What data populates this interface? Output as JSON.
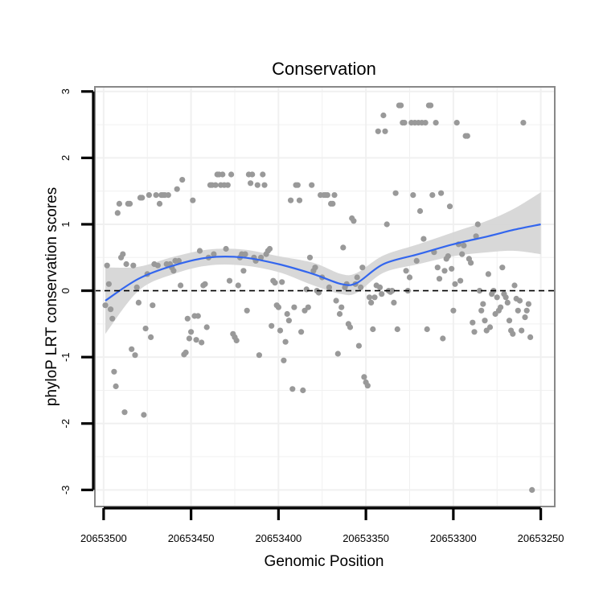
{
  "chart_data": {
    "type": "scatter",
    "title": "Conservation",
    "xlabel": "Genomic Position",
    "ylabel": "phyloP LRT conservation scores",
    "xlim": [
      20653505,
      20653242
    ],
    "x_reversed": true,
    "ylim": [
      -3.25,
      3.07
    ],
    "x_ticks": [
      20653500,
      20653450,
      20653400,
      20653350,
      20653300,
      20653250
    ],
    "x_tick_labels": [
      "20653500",
      "20653450",
      "20653400",
      "20653350",
      "20653300",
      "20653250"
    ],
    "y_ticks": [
      -3,
      -2,
      -1,
      0,
      1,
      2,
      3
    ],
    "y_tick_labels": [
      "-3",
      "-2",
      "-1",
      "0",
      "1",
      "2",
      "3"
    ],
    "grid": true,
    "reference_line": {
      "y": 0,
      "style": "dashed",
      "color": "#000000"
    },
    "colors": {
      "points": "#999999",
      "smooth": "#3366ee",
      "ribbon": "#d4d4d4",
      "panel_border": "#888888",
      "grid": "#f0f0f0",
      "axis_line": "#000000"
    },
    "series": [
      {
        "name": "phyloP scores",
        "kind": "points",
        "points": [
          [
            20653499,
            -0.22
          ],
          [
            20653498,
            0.38
          ],
          [
            20653497,
            0.1
          ],
          [
            20653496,
            -0.28
          ],
          [
            20653495,
            -0.42
          ],
          [
            20653494,
            -1.22
          ],
          [
            20653493,
            -1.44
          ],
          [
            20653492,
            1.17
          ],
          [
            20653491,
            1.31
          ],
          [
            20653490,
            0.5
          ],
          [
            20653489,
            0.55
          ],
          [
            20653488,
            -1.83
          ],
          [
            20653487,
            0.4
          ],
          [
            20653486,
            1.31
          ],
          [
            20653485,
            1.31
          ],
          [
            20653484,
            -0.88
          ],
          [
            20653483,
            0.38
          ],
          [
            20653482,
            -0.97
          ],
          [
            20653481,
            0.05
          ],
          [
            20653480,
            -0.18
          ],
          [
            20653479,
            1.4
          ],
          [
            20653478,
            1.4
          ],
          [
            20653477,
            -1.87
          ],
          [
            20653476,
            -0.57
          ],
          [
            20653475,
            0.25
          ],
          [
            20653474,
            1.44
          ],
          [
            20653473,
            -0.7
          ],
          [
            20653472,
            -0.22
          ],
          [
            20653471,
            0.4
          ],
          [
            20653470,
            1.44
          ],
          [
            20653469,
            0.38
          ],
          [
            20653468,
            1.31
          ],
          [
            20653467,
            1.44
          ],
          [
            20653466,
            1.44
          ],
          [
            20653465,
            1.44
          ],
          [
            20653464,
            0.4
          ],
          [
            20653463,
            1.44
          ],
          [
            20653462,
            0.4
          ],
          [
            20653461,
            0.35
          ],
          [
            20653460,
            0.3
          ],
          [
            20653459,
            0.45
          ],
          [
            20653458,
            1.53
          ],
          [
            20653457,
            0.45
          ],
          [
            20653456,
            0.08
          ],
          [
            20653455,
            1.67
          ],
          [
            20653454,
            -0.96
          ],
          [
            20653453,
            -0.93
          ],
          [
            20653452,
            -0.42
          ],
          [
            20653451,
            -0.72
          ],
          [
            20653450,
            -0.62
          ],
          [
            20653449,
            1.36
          ],
          [
            20653448,
            -0.38
          ],
          [
            20653447,
            -0.74
          ],
          [
            20653446,
            -0.38
          ],
          [
            20653445,
            0.6
          ],
          [
            20653444,
            -0.78
          ],
          [
            20653443,
            0.08
          ],
          [
            20653442,
            0.1
          ],
          [
            20653441,
            -0.55
          ],
          [
            20653440,
            0.5
          ],
          [
            20653439,
            1.59
          ],
          [
            20653438,
            1.59
          ],
          [
            20653437,
            0.55
          ],
          [
            20653436,
            1.59
          ],
          [
            20653435,
            1.75
          ],
          [
            20653434,
            1.75
          ],
          [
            20653433,
            1.59
          ],
          [
            20653432,
            1.75
          ],
          [
            20653431,
            1.59
          ],
          [
            20653430,
            0.63
          ],
          [
            20653429,
            1.59
          ],
          [
            20653428,
            0.15
          ],
          [
            20653427,
            1.75
          ],
          [
            20653426,
            -0.65
          ],
          [
            20653425,
            -0.7
          ],
          [
            20653424,
            -0.75
          ],
          [
            20653423,
            0.08
          ],
          [
            20653422,
            0.5
          ],
          [
            20653421,
            0.55
          ],
          [
            20653420,
            0.3
          ],
          [
            20653419,
            0.55
          ],
          [
            20653418,
            -0.3
          ],
          [
            20653417,
            1.75
          ],
          [
            20653416,
            1.62
          ],
          [
            20653415,
            1.75
          ],
          [
            20653414,
            0.5
          ],
          [
            20653413,
            0.45
          ],
          [
            20653412,
            1.59
          ],
          [
            20653411,
            -0.97
          ],
          [
            20653410,
            0.5
          ],
          [
            20653409,
            1.75
          ],
          [
            20653408,
            1.59
          ],
          [
            20653407,
            0.55
          ],
          [
            20653406,
            0.6
          ],
          [
            20653405,
            0.63
          ],
          [
            20653404,
            -0.53
          ],
          [
            20653403,
            0.15
          ],
          [
            20653402,
            0.12
          ],
          [
            20653401,
            -0.22
          ],
          [
            20653400,
            -0.25
          ],
          [
            20653399,
            -0.6
          ],
          [
            20653398,
            0.13
          ],
          [
            20653397,
            -1.05
          ],
          [
            20653396,
            -0.77
          ],
          [
            20653395,
            -0.35
          ],
          [
            20653394,
            -0.45
          ],
          [
            20653393,
            1.36
          ],
          [
            20653392,
            -1.48
          ],
          [
            20653391,
            -0.25
          ],
          [
            20653390,
            1.59
          ],
          [
            20653389,
            1.59
          ],
          [
            20653388,
            1.36
          ],
          [
            20653387,
            -0.62
          ],
          [
            20653386,
            -1.5
          ],
          [
            20653385,
            -0.3
          ],
          [
            20653384,
            0.02
          ],
          [
            20653383,
            -0.25
          ],
          [
            20653382,
            0.5
          ],
          [
            20653381,
            1.59
          ],
          [
            20653380,
            0.3
          ],
          [
            20653379,
            0.35
          ],
          [
            20653378,
            0.0
          ],
          [
            20653377,
            -0.03
          ],
          [
            20653376,
            1.44
          ],
          [
            20653375,
            0.2
          ],
          [
            20653374,
            1.44
          ],
          [
            20653373,
            1.44
          ],
          [
            20653372,
            1.44
          ],
          [
            20653371,
            0.05
          ],
          [
            20653370,
            1.31
          ],
          [
            20653369,
            1.31
          ],
          [
            20653368,
            1.44
          ],
          [
            20653367,
            -0.15
          ],
          [
            20653366,
            -0.95
          ],
          [
            20653365,
            -0.35
          ],
          [
            20653364,
            -0.25
          ],
          [
            20653363,
            0.65
          ],
          [
            20653362,
            0.05
          ],
          [
            20653361,
            0.1
          ],
          [
            20653360,
            -0.5
          ],
          [
            20653359,
            -0.55
          ],
          [
            20653358,
            1.09
          ],
          [
            20653357,
            1.05
          ],
          [
            20653356,
            0.1
          ],
          [
            20653355,
            0.2
          ],
          [
            20653354,
            -0.83
          ],
          [
            20653353,
            0.05
          ],
          [
            20653352,
            0.35
          ],
          [
            20653351,
            -1.3
          ],
          [
            20653350,
            -1.38
          ],
          [
            20653349,
            -1.43
          ],
          [
            20653348,
            -0.1
          ],
          [
            20653347,
            -0.18
          ],
          [
            20653346,
            -0.58
          ],
          [
            20653345,
            -0.1
          ],
          [
            20653344,
            0.08
          ],
          [
            20653343,
            2.4
          ],
          [
            20653342,
            0.05
          ],
          [
            20653341,
            -0.05
          ],
          [
            20653340,
            2.64
          ],
          [
            20653339,
            2.4
          ],
          [
            20653338,
            1.0
          ],
          [
            20653337,
            0.0
          ],
          [
            20653336,
            -0.02
          ],
          [
            20653335,
            0.0
          ],
          [
            20653334,
            -0.18
          ],
          [
            20653333,
            1.47
          ],
          [
            20653332,
            -0.58
          ],
          [
            20653331,
            2.79
          ],
          [
            20653330,
            2.79
          ],
          [
            20653329,
            2.53
          ],
          [
            20653328,
            2.53
          ],
          [
            20653327,
            0.3
          ],
          [
            20653326,
            0.0
          ],
          [
            20653325,
            0.2
          ],
          [
            20653324,
            2.53
          ],
          [
            20653323,
            1.44
          ],
          [
            20653322,
            2.53
          ],
          [
            20653321,
            0.45
          ],
          [
            20653320,
            2.53
          ],
          [
            20653319,
            1.2
          ],
          [
            20653318,
            2.53
          ],
          [
            20653317,
            0.78
          ],
          [
            20653316,
            2.53
          ],
          [
            20653315,
            -0.58
          ],
          [
            20653314,
            2.79
          ],
          [
            20653313,
            2.79
          ],
          [
            20653312,
            1.44
          ],
          [
            20653311,
            0.58
          ],
          [
            20653310,
            2.53
          ],
          [
            20653309,
            0.35
          ],
          [
            20653308,
            0.18
          ],
          [
            20653307,
            1.47
          ],
          [
            20653306,
            -0.72
          ],
          [
            20653305,
            0.3
          ],
          [
            20653304,
            0.48
          ],
          [
            20653303,
            0.52
          ],
          [
            20653302,
            1.27
          ],
          [
            20653301,
            0.33
          ],
          [
            20653300,
            -0.3
          ],
          [
            20653299,
            0.1
          ],
          [
            20653298,
            2.53
          ],
          [
            20653297,
            0.7
          ],
          [
            20653296,
            0.15
          ],
          [
            20653295,
            0.55
          ],
          [
            20653294,
            0.68
          ],
          [
            20653293,
            2.33
          ],
          [
            20653292,
            2.33
          ],
          [
            20653291,
            0.48
          ],
          [
            20653290,
            0.42
          ],
          [
            20653289,
            -0.48
          ],
          [
            20653288,
            -0.62
          ],
          [
            20653287,
            0.82
          ],
          [
            20653286,
            1.0
          ],
          [
            20653285,
            0.0
          ],
          [
            20653284,
            -0.3
          ],
          [
            20653283,
            -0.2
          ],
          [
            20653282,
            -0.45
          ],
          [
            20653281,
            -0.6
          ],
          [
            20653280,
            0.25
          ],
          [
            20653279,
            -0.55
          ],
          [
            20653278,
            -0.05
          ],
          [
            20653277,
            0.0
          ],
          [
            20653276,
            -0.35
          ],
          [
            20653275,
            -0.1
          ],
          [
            20653274,
            -0.3
          ],
          [
            20653273,
            -0.25
          ],
          [
            20653272,
            0.35
          ],
          [
            20653271,
            -0.05
          ],
          [
            20653270,
            -0.1
          ],
          [
            20653269,
            -0.18
          ],
          [
            20653268,
            -0.45
          ],
          [
            20653267,
            -0.6
          ],
          [
            20653266,
            -0.65
          ],
          [
            20653265,
            0.08
          ],
          [
            20653264,
            -0.12
          ],
          [
            20653263,
            -0.3
          ],
          [
            20653262,
            -0.15
          ],
          [
            20653261,
            -0.6
          ],
          [
            20653260,
            2.53
          ],
          [
            20653259,
            -0.4
          ],
          [
            20653258,
            -0.3
          ],
          [
            20653257,
            -0.2
          ],
          [
            20653256,
            -0.7
          ],
          [
            20653255,
            -3.0
          ]
        ]
      },
      {
        "name": "loess fit",
        "kind": "smooth",
        "x": [
          20653499,
          20653480,
          20653460,
          20653440,
          20653420,
          20653400,
          20653380,
          20653364,
          20653355,
          20653340,
          20653320,
          20653300,
          20653280,
          20653265,
          20653250
        ],
        "y": [
          -0.15,
          0.18,
          0.38,
          0.5,
          0.5,
          0.4,
          0.25,
          0.1,
          0.12,
          0.4,
          0.55,
          0.7,
          0.82,
          0.92,
          1.0
        ],
        "lower": [
          -0.65,
          0.0,
          0.25,
          0.38,
          0.38,
          0.28,
          0.08,
          -0.05,
          -0.03,
          0.27,
          0.4,
          0.52,
          0.58,
          0.6,
          0.55
        ],
        "upper": [
          0.35,
          0.36,
          0.51,
          0.62,
          0.62,
          0.52,
          0.42,
          0.25,
          0.27,
          0.53,
          0.7,
          0.88,
          1.06,
          1.24,
          1.48
        ]
      }
    ]
  }
}
